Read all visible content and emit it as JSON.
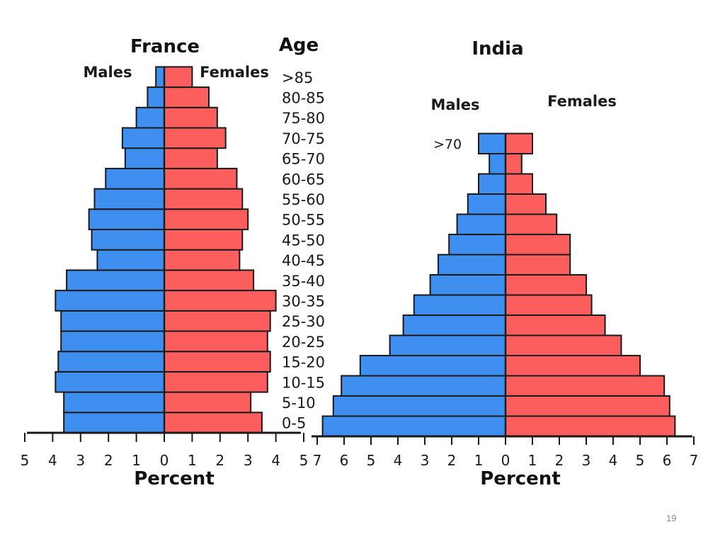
{
  "page_number": "19",
  "chart_data": [
    {
      "type": "bar",
      "orientation": "horizontal",
      "title": "France",
      "age_header": "Age",
      "xlabel": "Percent",
      "categories": [
        "0-5",
        "5-10",
        "10-15",
        "15-20",
        "20-25",
        "25-30",
        "30-35",
        "35-40",
        "40-45",
        "45-50",
        "50-55",
        "55-60",
        "60-65",
        "65-70",
        "70-75",
        "75-80",
        "80-85",
        ">85"
      ],
      "series": [
        {
          "name": "Males",
          "color": "#3f8ff0",
          "values": [
            3.6,
            3.6,
            3.9,
            3.8,
            3.7,
            3.7,
            3.9,
            3.5,
            2.4,
            2.6,
            2.7,
            2.5,
            2.1,
            1.4,
            1.5,
            1.0,
            0.6,
            0.3
          ]
        },
        {
          "name": "Females",
          "color": "#fc5e5e",
          "values": [
            3.5,
            3.1,
            3.7,
            3.8,
            3.7,
            3.8,
            4.0,
            3.2,
            2.7,
            2.8,
            3.0,
            2.8,
            2.6,
            1.9,
            2.2,
            1.9,
            1.6,
            1.0
          ]
        }
      ],
      "xticks": [
        "5",
        "4",
        "3",
        "2",
        "1",
        "0",
        "1",
        "2",
        "3",
        "4",
        "5"
      ],
      "xlim": [
        -5,
        5
      ]
    },
    {
      "type": "bar",
      "orientation": "horizontal",
      "title": "India",
      "xlabel": "Percent",
      "categories": [
        "0-5",
        "5-10",
        "10-15",
        "15-20",
        "20-25",
        "25-30",
        "30-35",
        "35-40",
        "40-45",
        "45-50",
        "50-55",
        "55-60",
        "60-65",
        "65-70",
        ">70"
      ],
      "category_labels_shown": [
        ">70"
      ],
      "series": [
        {
          "name": "Males",
          "color": "#3f8ff0",
          "values": [
            6.8,
            6.4,
            6.1,
            5.4,
            4.3,
            3.8,
            3.4,
            2.8,
            2.5,
            2.1,
            1.8,
            1.4,
            1.0,
            0.6,
            1.0
          ]
        },
        {
          "name": "Females",
          "color": "#fc5e5e",
          "values": [
            6.3,
            6.1,
            5.9,
            5.0,
            4.3,
            3.7,
            3.2,
            3.0,
            2.4,
            2.4,
            1.9,
            1.5,
            1.0,
            0.6,
            1.0
          ]
        }
      ],
      "xticks": [
        "7",
        "6",
        "5",
        "4",
        "3",
        "2",
        "1",
        "0",
        "1",
        "2",
        "3",
        "4",
        "5",
        "6",
        "7"
      ],
      "xlim": [
        -7,
        7
      ]
    }
  ]
}
